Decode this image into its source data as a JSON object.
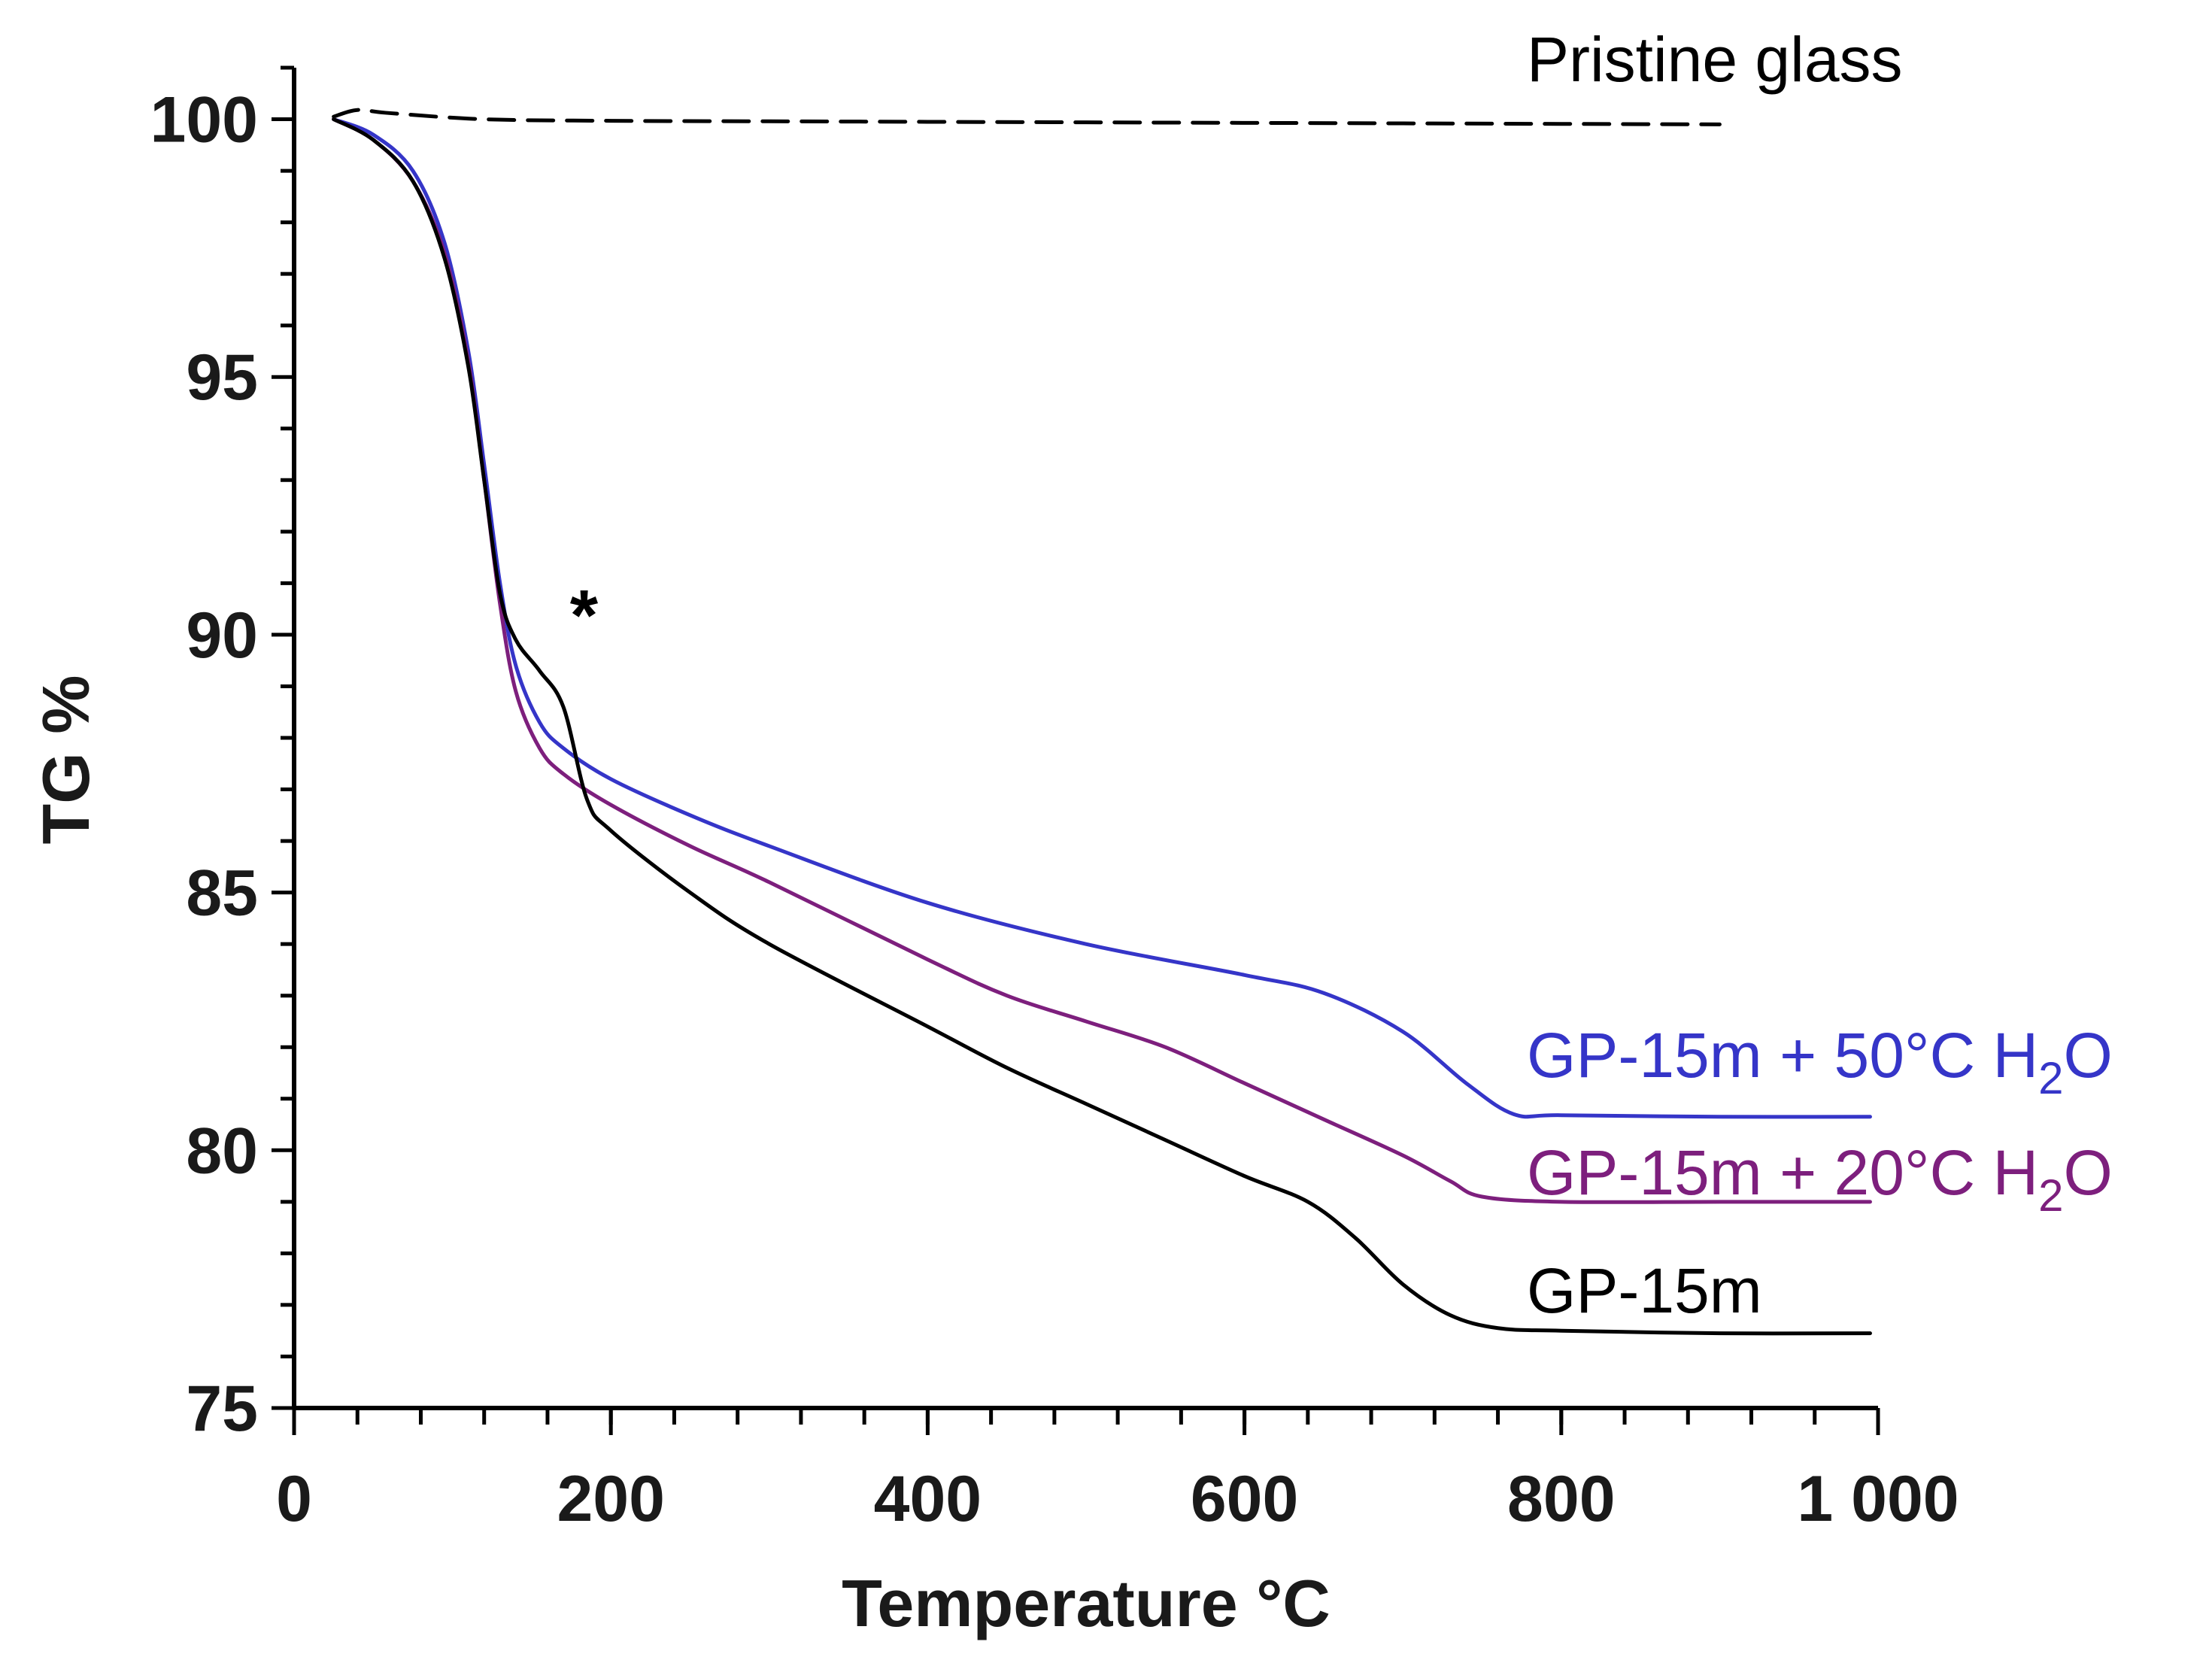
{
  "chart_data": {
    "type": "line",
    "xlabel": "Temperature °C",
    "ylabel": "TG %",
    "xlim": [
      0,
      1000
    ],
    "ylim": [
      75,
      101
    ],
    "x_ticks": [
      0,
      200,
      400,
      600,
      800,
      1000
    ],
    "x_tick_labels": [
      "0",
      "200",
      "400",
      "600",
      "800",
      "1 000"
    ],
    "y_ticks": [
      75,
      80,
      85,
      90,
      95,
      100
    ],
    "y_tick_labels": [
      "75",
      "80",
      "85",
      "90",
      "95",
      "100"
    ],
    "grid": false,
    "legend": "inline labels at right end of curves",
    "annotations": [
      {
        "text": "*",
        "x": 183,
        "y": 89.9
      }
    ],
    "series": [
      {
        "name": "Pristine glass",
        "color": "#000000",
        "dash": "dashed",
        "label_parts": [
          "Pristine glass"
        ],
        "points": [
          [
            25,
            100.05
          ],
          [
            40,
            100.18
          ],
          [
            60,
            100.12
          ],
          [
            120,
            100.0
          ],
          [
            200,
            99.97
          ],
          [
            300,
            99.96
          ],
          [
            400,
            99.95
          ],
          [
            500,
            99.94
          ],
          [
            600,
            99.93
          ],
          [
            700,
            99.92
          ],
          [
            800,
            99.91
          ],
          [
            900,
            99.9
          ]
        ]
      },
      {
        "name": "GP-15m + 50°C H₂O",
        "color": "#3535c8",
        "dash": "solid",
        "label_parts": [
          "GP-15m + 50°C H",
          "2",
          "O"
        ],
        "points": [
          [
            25,
            100.0
          ],
          [
            50,
            99.7
          ],
          [
            75,
            99.0
          ],
          [
            95,
            97.6
          ],
          [
            110,
            95.5
          ],
          [
            120,
            93.3
          ],
          [
            130,
            91.0
          ],
          [
            140,
            89.4
          ],
          [
            155,
            88.3
          ],
          [
            170,
            87.8
          ],
          [
            200,
            87.2
          ],
          [
            250,
            86.5
          ],
          [
            300,
            85.9
          ],
          [
            400,
            84.8
          ],
          [
            500,
            84.0
          ],
          [
            600,
            83.4
          ],
          [
            650,
            83.05
          ],
          [
            700,
            82.3
          ],
          [
            740,
            81.3
          ],
          [
            770,
            80.7
          ],
          [
            800,
            80.68
          ],
          [
            900,
            80.65
          ],
          [
            995,
            80.65
          ]
        ]
      },
      {
        "name": "GP-15m + 20°C H₂O",
        "color": "#7d1f7d",
        "dash": "solid",
        "label_parts": [
          "GP-15m + 20°C H",
          "2",
          "O"
        ],
        "points": [
          [
            25,
            100.0
          ],
          [
            50,
            99.6
          ],
          [
            75,
            98.8
          ],
          [
            95,
            97.4
          ],
          [
            110,
            95.3
          ],
          [
            120,
            93.0
          ],
          [
            130,
            90.6
          ],
          [
            140,
            88.9
          ],
          [
            155,
            87.8
          ],
          [
            170,
            87.3
          ],
          [
            200,
            86.7
          ],
          [
            250,
            85.9
          ],
          [
            300,
            85.2
          ],
          [
            400,
            83.7
          ],
          [
            450,
            83.0
          ],
          [
            500,
            82.5
          ],
          [
            550,
            82.0
          ],
          [
            600,
            81.3
          ],
          [
            650,
            80.6
          ],
          [
            700,
            79.9
          ],
          [
            730,
            79.4
          ],
          [
            750,
            79.1
          ],
          [
            800,
            79.0
          ],
          [
            900,
            79.0
          ],
          [
            995,
            79.0
          ]
        ]
      },
      {
        "name": "GP-15m",
        "color": "#000000",
        "dash": "solid",
        "label_parts": [
          "GP-15m"
        ],
        "points": [
          [
            25,
            100.0
          ],
          [
            50,
            99.6
          ],
          [
            75,
            98.8
          ],
          [
            95,
            97.3
          ],
          [
            110,
            95.2
          ],
          [
            120,
            93.0
          ],
          [
            130,
            90.8
          ],
          [
            140,
            89.9
          ],
          [
            155,
            89.3
          ],
          [
            170,
            88.6
          ],
          [
            185,
            86.8
          ],
          [
            200,
            86.2
          ],
          [
            250,
            85.0
          ],
          [
            300,
            84.0
          ],
          [
            400,
            82.4
          ],
          [
            450,
            81.6
          ],
          [
            500,
            80.9
          ],
          [
            550,
            80.2
          ],
          [
            600,
            79.5
          ],
          [
            640,
            79.0
          ],
          [
            670,
            78.3
          ],
          [
            700,
            77.4
          ],
          [
            730,
            76.8
          ],
          [
            760,
            76.55
          ],
          [
            800,
            76.5
          ],
          [
            900,
            76.45
          ],
          [
            995,
            76.45
          ]
        ]
      }
    ]
  }
}
